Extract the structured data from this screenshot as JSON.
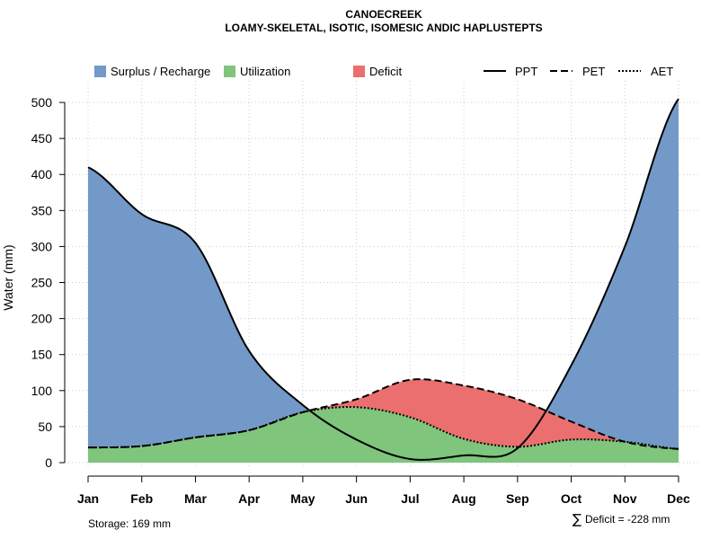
{
  "chart_data": {
    "type": "area",
    "title": "CANOECREEK",
    "subtitle": "LOAMY-SKELETAL, ISOTIC, ISOMESIC ANDIC HAPLUSTEPTS",
    "xlabel": "",
    "ylabel": "Water (mm)",
    "categories": [
      "Jan",
      "Feb",
      "Mar",
      "Apr",
      "May",
      "Jun",
      "Jul",
      "Aug",
      "Sep",
      "Oct",
      "Nov",
      "Dec"
    ],
    "ylim": [
      0,
      525
    ],
    "yticks": [
      0,
      50,
      100,
      150,
      200,
      250,
      300,
      350,
      400,
      450,
      500
    ],
    "grid": true,
    "series": [
      {
        "name": "PPT",
        "line": "solid",
        "values": [
          410,
          345,
          305,
          155,
          80,
          32,
          5,
          10,
          20,
          135,
          300,
          505
        ]
      },
      {
        "name": "PET",
        "line": "dashed",
        "values": [
          21,
          23,
          35,
          45,
          70,
          88,
          115,
          107,
          88,
          57,
          29,
          19
        ]
      },
      {
        "name": "AET",
        "line": "dotted",
        "values": [
          21,
          23,
          35,
          45,
          70,
          77,
          63,
          33,
          22,
          32,
          29,
          19
        ]
      }
    ],
    "legend": {
      "position": "top",
      "fills": [
        {
          "label": "Surplus / Recharge",
          "color": "#7399C8"
        },
        {
          "label": "Utilization",
          "color": "#7FC57C"
        },
        {
          "label": "Deficit",
          "color": "#EB6F6F"
        }
      ],
      "lines": [
        "PPT",
        "PET",
        "AET"
      ]
    },
    "annotations": {
      "storage": "Storage: 169 mm",
      "deficit_symbol": "∑",
      "deficit": "Deficit = -228 mm"
    }
  }
}
